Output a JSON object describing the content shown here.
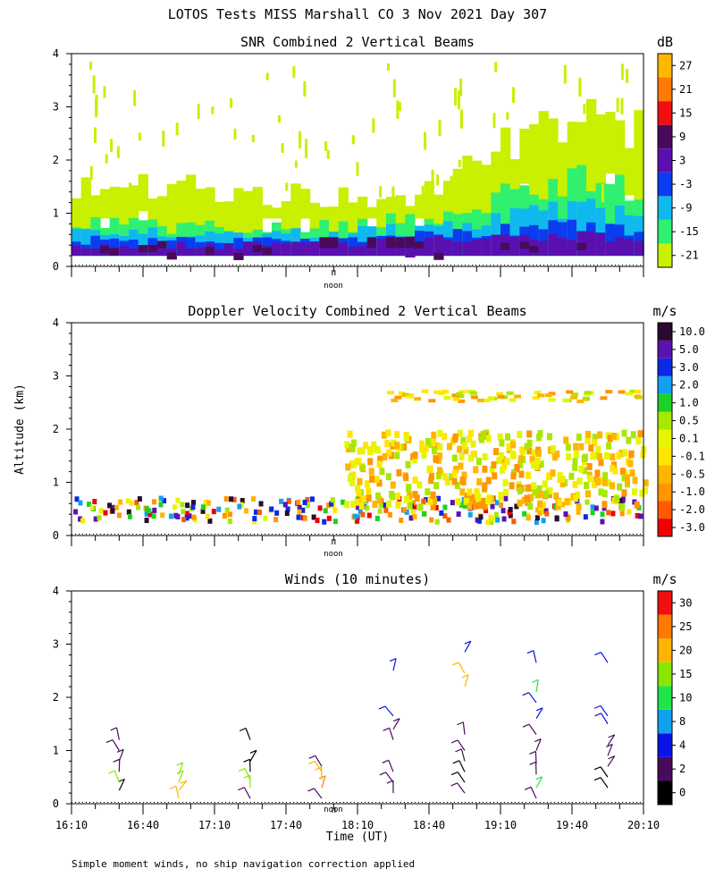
{
  "figure": {
    "title": "LOTOS Tests MISS Marshall CO   3 Nov 2021 Day 307",
    "ylabel": "Altitude (km)",
    "xlabel": "Time (UT)",
    "noon_label": "noon",
    "footnote": "Simple moment winds, no ship navigation correction applied"
  },
  "chart_data": [
    {
      "type": "heatmap",
      "title": "SNR Combined 2 Vertical Beams",
      "unit": "dB",
      "ylim": [
        0,
        4
      ],
      "yticks": [
        "0",
        "1",
        "2",
        "3",
        "4"
      ],
      "xlim": [
        "16:10",
        "20:10"
      ],
      "colorbar": [
        {
          "label": "-21",
          "color": "#c8f000"
        },
        {
          "label": "-15",
          "color": "#30f070"
        },
        {
          "label": "-9",
          "color": "#10b8f0"
        },
        {
          "label": "-3",
          "color": "#0a3cf0"
        },
        {
          "label": "3",
          "color": "#5a10b0"
        },
        {
          "label": "9",
          "color": "#4a0a5c"
        },
        {
          "label": "15",
          "color": "#f01010"
        },
        {
          "label": "21",
          "color": "#ff7a00"
        },
        {
          "label": "27",
          "color": "#ffb800"
        }
      ],
      "layers": [
        {
          "label": "-21",
          "start_hours": [
            0.0,
            1.5,
            2.5,
            3.5,
            4.0
          ],
          "top_km": [
            1.6,
            1.3,
            1.4,
            3.0,
            2.7
          ]
        },
        {
          "label": "-15",
          "start_hours": [
            0.0,
            1.5,
            2.5,
            3.5,
            4.0
          ],
          "top_km": [
            0.8,
            0.7,
            0.9,
            1.7,
            1.4
          ]
        },
        {
          "label": "-9",
          "start_hours": [
            0.0,
            1.5,
            2.5,
            3.5,
            4.0
          ],
          "top_km": [
            0.65,
            0.6,
            0.7,
            1.1,
            0.9
          ]
        },
        {
          "label": "-3",
          "start_hours": [
            0.0,
            1.5,
            2.5,
            3.5,
            4.0
          ],
          "top_km": [
            0.5,
            0.45,
            0.6,
            0.8,
            0.6
          ]
        },
        {
          "label": "3",
          "start_hours": [
            0.0,
            1.5,
            2.5,
            3.5,
            4.0
          ],
          "top_km": [
            0.35,
            0.4,
            0.5,
            0.6,
            0.45
          ]
        }
      ]
    },
    {
      "type": "heatmap",
      "title": "Doppler Velocity Combined 2 Vertical Beams",
      "unit": "m/s",
      "ylim": [
        0,
        4
      ],
      "yticks": [
        "0",
        "1",
        "2",
        "3",
        "4"
      ],
      "xlim": [
        "16:10",
        "20:10"
      ],
      "colorbar": [
        {
          "label": "-3.0",
          "color": "#f00000"
        },
        {
          "label": "-2.0",
          "color": "#ff5a00"
        },
        {
          "label": "-1.0",
          "color": "#ff9600"
        },
        {
          "label": "-0.5",
          "color": "#ffb400"
        },
        {
          "label": "-0.1",
          "color": "#ffe600"
        },
        {
          "label": "0.1",
          "color": "#e6f500"
        },
        {
          "label": "0.5",
          "color": "#a8e800"
        },
        {
          "label": "1.0",
          "color": "#1ed02a"
        },
        {
          "label": "2.0",
          "color": "#12a0f0"
        },
        {
          "label": "3.0",
          "color": "#0a28e6"
        },
        {
          "label": "5.0",
          "color": "#5a12b0"
        },
        {
          "label": "10.0",
          "color": "#2a0a30"
        }
      ]
    },
    {
      "type": "scatter",
      "title": "Winds (10 minutes)",
      "unit": "m/s",
      "ylim": [
        0,
        4
      ],
      "yticks": [
        "0",
        "1",
        "2",
        "3",
        "4"
      ],
      "xlim": [
        "16:10",
        "20:10"
      ],
      "xticks": [
        "16:10",
        "16:40",
        "17:10",
        "17:40",
        "18:10",
        "18:40",
        "19:10",
        "19:40",
        "20:10"
      ],
      "colorbar": [
        {
          "label": "0",
          "color": "#000000"
        },
        {
          "label": "2",
          "color": "#4a0a5c"
        },
        {
          "label": "4",
          "color": "#0a14e6"
        },
        {
          "label": "8",
          "color": "#12a0f0"
        },
        {
          "label": "10",
          "color": "#1ee64a"
        },
        {
          "label": "15",
          "color": "#8ae600"
        },
        {
          "label": "20",
          "color": "#ffb400"
        },
        {
          "label": "25",
          "color": "#ff7800"
        },
        {
          "label": "30",
          "color": "#f01010"
        }
      ],
      "profiles": [
        {
          "time": "16:30",
          "heights_km": [
            0.25,
            0.4,
            0.6,
            0.8,
            1.0,
            1.2
          ],
          "speed_ms": [
            1,
            15,
            2,
            2,
            3,
            3
          ]
        },
        {
          "time": "16:55",
          "heights_km": [
            0.1,
            0.25,
            0.4,
            0.55
          ],
          "speed_ms": [
            22,
            20,
            16,
            15
          ]
        },
        {
          "time": "17:25",
          "heights_km": [
            0.1,
            0.3,
            0.45,
            0.6,
            0.8,
            1.2
          ],
          "speed_ms": [
            3,
            15,
            16,
            1,
            1,
            1
          ]
        },
        {
          "time": "17:55",
          "heights_km": [
            0.1,
            0.3,
            0.45,
            0.6,
            0.7
          ],
          "speed_ms": [
            3,
            25,
            22,
            20,
            3
          ]
        },
        {
          "time": "18:25",
          "heights_km": [
            0.2,
            0.4,
            0.6,
            1.2,
            1.4,
            1.65,
            2.5
          ],
          "speed_ms": [
            3,
            3,
            3,
            3,
            3,
            4,
            4
          ]
        },
        {
          "time": "18:55",
          "heights_km": [
            0.2,
            0.4,
            0.6,
            0.8,
            1.0,
            1.3,
            2.2,
            2.45,
            2.85
          ],
          "speed_ms": [
            2,
            1,
            1,
            2,
            3,
            3,
            20,
            20,
            4
          ]
        },
        {
          "time": "19:25",
          "heights_km": [
            0.1,
            0.3,
            0.55,
            0.75,
            1.0,
            1.3,
            1.6,
            1.9,
            2.1,
            2.65
          ],
          "speed_ms": [
            3,
            12,
            3,
            2,
            2,
            3,
            4,
            4,
            10,
            4
          ]
        },
        {
          "time": "19:55",
          "heights_km": [
            0.3,
            0.5,
            0.7,
            0.9,
            1.1,
            1.5,
            1.65,
            2.65
          ],
          "speed_ms": [
            1,
            1,
            3,
            3,
            2,
            4,
            4,
            4
          ]
        }
      ]
    }
  ]
}
